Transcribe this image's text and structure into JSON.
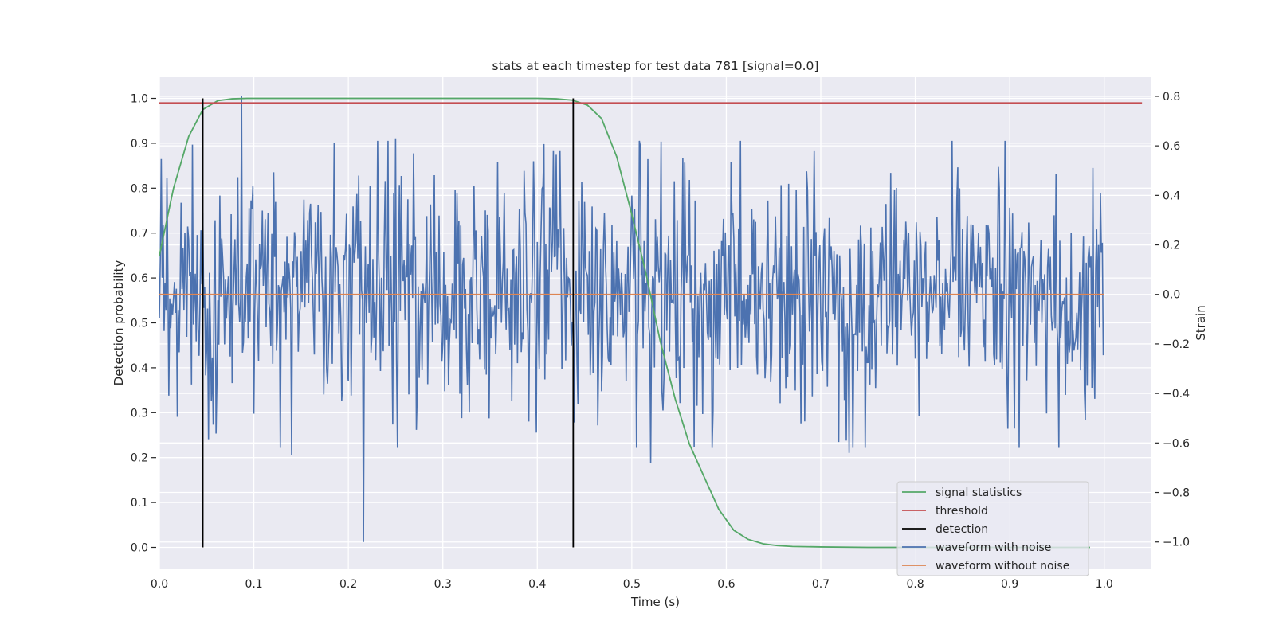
{
  "chart_data": {
    "type": "line",
    "title": "stats at each timestep for test data 781 [signal=0.0]",
    "xlabel": "Time (s)",
    "ylabel": "Detection probability",
    "y2label": "Strain",
    "xlim": [
      0.0,
      1.05
    ],
    "ylim": [
      -0.047,
      1.047
    ],
    "y2lim": [
      -1.107,
      0.877
    ],
    "x_ticks": [
      "0.0",
      "0.1",
      "0.2",
      "0.3",
      "0.4",
      "0.5",
      "0.6",
      "0.7",
      "0.8",
      "0.9",
      "1.0"
    ],
    "y_ticks": [
      "0.0",
      "0.1",
      "0.2",
      "0.3",
      "0.4",
      "0.5",
      "0.6",
      "0.7",
      "0.8",
      "0.9",
      "1.0"
    ],
    "y2_ticks": [
      "−1.0",
      "−0.8",
      "−0.6",
      "−0.4",
      "−0.2",
      "0.0",
      "0.2",
      "0.4",
      "0.6",
      "0.8"
    ],
    "grid": true,
    "legend_position": "lower-right",
    "colors": {
      "signal_statistics": "#55a868",
      "threshold": "#c44e52",
      "detection": "#000000",
      "waveform_with_noise": "#4c72b0",
      "waveform_without_noise": "#dd8452",
      "background": "#eaeaf2",
      "grid": "#ffffff"
    },
    "series": [
      {
        "name": "signal statistics",
        "axis": "left",
        "x": [
          0.0,
          0.015,
          0.031,
          0.046,
          0.062,
          0.077,
          0.093,
          0.108,
          0.124,
          0.14,
          0.2,
          0.3,
          0.4,
          0.42,
          0.437,
          0.453,
          0.468,
          0.484,
          0.499,
          0.515,
          0.53,
          0.546,
          0.561,
          0.577,
          0.592,
          0.608,
          0.623,
          0.639,
          0.654,
          0.67,
          0.7,
          0.75,
          0.8,
          0.85,
          0.9,
          0.95,
          0.985
        ],
        "y": [
          0.65,
          0.8,
          0.915,
          0.975,
          0.995,
          0.999,
          1.0,
          1.0,
          1.0,
          1.0,
          1.0,
          1.0,
          1.0,
          0.999,
          0.996,
          0.985,
          0.955,
          0.87,
          0.75,
          0.61,
          0.46,
          0.33,
          0.23,
          0.155,
          0.085,
          0.038,
          0.018,
          0.008,
          0.004,
          0.002,
          0.001,
          0.0,
          0.0,
          0.0,
          0.0,
          0.0,
          0.0
        ]
      },
      {
        "name": "threshold",
        "axis": "left",
        "x": [
          0.0,
          1.04
        ],
        "y": [
          0.99,
          0.99
        ]
      },
      {
        "name": "detection",
        "axis": "left",
        "vlines": [
          0.046,
          0.438
        ],
        "ymin": 0.0,
        "ymax": 1.0
      },
      {
        "name": "waveform with noise",
        "axis": "right",
        "dt": 0.001,
        "n_points": 1000,
        "description_markers": {
          "max_strain": 0.8,
          "min_strain": -1.0,
          "spread": 0.25
        }
      },
      {
        "name": "waveform without noise",
        "axis": "right",
        "x": [
          0.0,
          1.0
        ],
        "y": [
          0.0,
          0.0
        ]
      }
    ],
    "legend": [
      "signal statistics",
      "threshold",
      "detection",
      "waveform with noise",
      "waveform without noise"
    ]
  }
}
